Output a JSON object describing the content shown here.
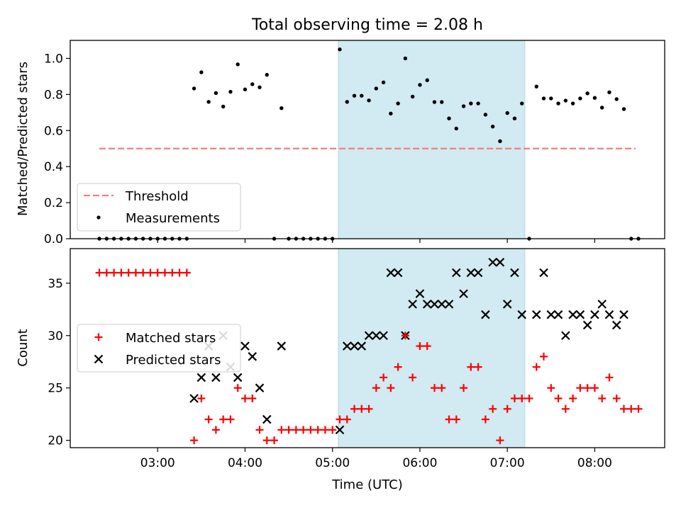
{
  "figure": {
    "title": "Total observing time = 2.08 h",
    "xlabel": "Time (UTC)",
    "shade_color": "#add8e6"
  },
  "chart_data": [
    {
      "type": "scatter",
      "ylabel": "Matched/Predicted stars",
      "xlim": [
        "02:00",
        "08:48"
      ],
      "ylim": [
        0,
        1.1
      ],
      "yticks": [
        0.0,
        0.2,
        0.4,
        0.6,
        0.8,
        1.0
      ],
      "ytick_labels": [
        "0.0",
        "0.2",
        "0.4",
        "0.6",
        "0.8",
        "1.0"
      ],
      "shaded_region": [
        "05:04",
        "07:12"
      ],
      "legend": {
        "position": "lower left",
        "entries": [
          "Threshold",
          "Measurements"
        ]
      },
      "threshold": {
        "name": "Threshold",
        "value": 0.5,
        "x_range": [
          "02:20",
          "08:28"
        ],
        "color": "#f08080",
        "style": "dashed"
      },
      "series": [
        {
          "name": "Measurements",
          "marker": "dot",
          "color": "#000000",
          "x": [
            "02:20",
            "02:25",
            "02:30",
            "02:35",
            "02:40",
            "02:45",
            "02:50",
            "02:55",
            "03:00",
            "03:05",
            "03:10",
            "03:15",
            "03:20",
            "03:25",
            "03:30",
            "03:35",
            "03:40",
            "03:45",
            "03:50",
            "03:55",
            "04:00",
            "04:05",
            "04:10",
            "04:15",
            "04:20",
            "04:25",
            "04:30",
            "04:35",
            "04:40",
            "04:45",
            "04:50",
            "04:55",
            "05:00",
            "05:05",
            "05:10",
            "05:15",
            "05:20",
            "05:25",
            "05:30",
            "05:35",
            "05:40",
            "05:45",
            "05:50",
            "05:55",
            "06:00",
            "06:05",
            "06:10",
            "06:15",
            "06:20",
            "06:25",
            "06:30",
            "06:35",
            "06:40",
            "06:45",
            "06:50",
            "06:55",
            "07:00",
            "07:05",
            "07:10",
            "07:15",
            "07:20",
            "07:25",
            "07:30",
            "07:35",
            "07:40",
            "07:45",
            "07:50",
            "07:55",
            "08:00",
            "08:05",
            "08:10",
            "08:15",
            "08:20",
            "08:25",
            "08:30"
          ],
          "y": [
            0,
            0,
            0,
            0,
            0,
            0,
            0,
            0,
            0,
            0,
            0,
            0,
            0,
            0.833,
            0.923,
            0.759,
            0.808,
            0.733,
            0.815,
            0.967,
            0.828,
            0.857,
            0.84,
            0.909,
            0,
            0.724,
            0,
            0,
            0,
            0,
            0,
            0,
            0,
            1.05,
            0.759,
            0.793,
            0.793,
            0.767,
            0.833,
            0.867,
            0.694,
            0.75,
            1.0,
            0.788,
            0.853,
            0.879,
            0.758,
            0.758,
            0.667,
            0.611,
            0.735,
            0.75,
            0.75,
            0.688,
            0.622,
            0.541,
            0.697,
            0.667,
            0.75,
            0,
            0.844,
            0.778,
            0.778,
            0.75,
            0.766,
            0.75,
            0.778,
            0.806,
            0.781,
            0.727,
            0.812,
            0.774,
            0.719,
            0,
            0
          ]
        }
      ]
    },
    {
      "type": "scatter",
      "ylabel": "Count",
      "xlim": [
        "02:00",
        "08:48"
      ],
      "ylim": [
        19.3,
        38.3
      ],
      "yticks": [
        20,
        25,
        30,
        35
      ],
      "ytick_labels": [
        "20",
        "25",
        "30",
        "35"
      ],
      "xticks": [
        "03:00",
        "04:00",
        "05:00",
        "06:00",
        "07:00",
        "08:00"
      ],
      "xtick_labels": [
        "03:00",
        "04:00",
        "05:00",
        "06:00",
        "07:00",
        "08:00"
      ],
      "shaded_region": [
        "05:04",
        "07:12"
      ],
      "legend": {
        "position": "center left",
        "entries": [
          "Matched stars",
          "Predicted stars"
        ]
      },
      "series": [
        {
          "name": "Matched stars",
          "marker": "plus",
          "color": "#ff0000",
          "x": [
            "02:20",
            "02:25",
            "02:30",
            "02:35",
            "02:40",
            "02:45",
            "02:50",
            "02:55",
            "03:00",
            "03:05",
            "03:10",
            "03:15",
            "03:20",
            "03:25",
            "03:30",
            "03:35",
            "03:40",
            "03:45",
            "03:50",
            "03:55",
            "04:00",
            "04:05",
            "04:10",
            "04:15",
            "04:20",
            "04:25",
            "04:30",
            "04:35",
            "04:40",
            "04:45",
            "04:50",
            "04:55",
            "05:00",
            "05:05",
            "05:10",
            "05:15",
            "05:20",
            "05:25",
            "05:30",
            "05:35",
            "05:40",
            "05:45",
            "05:50",
            "05:55",
            "06:00",
            "06:05",
            "06:10",
            "06:15",
            "06:20",
            "06:25",
            "06:30",
            "06:35",
            "06:40",
            "06:45",
            "06:50",
            "06:55",
            "07:00",
            "07:05",
            "07:10",
            "07:15",
            "07:20",
            "07:25",
            "07:30",
            "07:35",
            "07:40",
            "07:45",
            "07:50",
            "07:55",
            "08:00",
            "08:05",
            "08:10",
            "08:15",
            "08:20",
            "08:25",
            "08:30"
          ],
          "y": [
            36,
            36,
            36,
            36,
            36,
            36,
            36,
            36,
            36,
            36,
            36,
            36,
            36,
            20,
            24,
            22,
            21,
            22,
            22,
            25,
            24,
            24,
            21,
            20,
            20,
            21,
            21,
            21,
            21,
            21,
            21,
            21,
            21,
            22,
            22,
            23,
            23,
            23,
            25,
            26,
            25,
            27,
            30,
            26,
            29,
            29,
            25,
            25,
            22,
            22,
            25,
            27,
            27,
            22,
            23,
            20,
            23,
            24,
            24,
            24,
            27,
            28,
            25,
            24,
            23,
            24,
            25,
            25,
            25,
            24,
            26,
            24,
            23,
            23,
            23
          ]
        },
        {
          "name": "Predicted stars",
          "marker": "x",
          "color": "#000000",
          "x": [
            "03:25",
            "03:30",
            "03:35",
            "03:40",
            "03:45",
            "03:50",
            "03:55",
            "04:00",
            "04:05",
            "04:10",
            "04:15",
            "04:25",
            "05:05",
            "05:10",
            "05:15",
            "05:20",
            "05:25",
            "05:30",
            "05:35",
            "05:40",
            "05:45",
            "05:50",
            "05:55",
            "06:00",
            "06:05",
            "06:10",
            "06:15",
            "06:20",
            "06:25",
            "06:30",
            "06:35",
            "06:40",
            "06:45",
            "06:50",
            "06:55",
            "07:00",
            "07:05",
            "07:10",
            "07:20",
            "07:25",
            "07:30",
            "07:35",
            "07:40",
            "07:45",
            "07:50",
            "07:55",
            "08:00",
            "08:05",
            "08:10",
            "08:15",
            "08:20"
          ],
          "y": [
            24,
            26,
            29,
            26,
            30,
            27,
            26,
            29,
            28,
            25,
            22,
            29,
            21,
            29,
            29,
            29,
            30,
            30,
            30,
            36,
            36,
            30,
            33,
            34,
            33,
            33,
            33,
            33,
            36,
            34,
            36,
            36,
            32,
            37,
            37,
            33,
            36,
            32,
            32,
            36,
            32,
            32,
            30,
            32,
            32,
            31,
            32,
            33,
            32,
            31,
            32
          ]
        }
      ]
    }
  ]
}
